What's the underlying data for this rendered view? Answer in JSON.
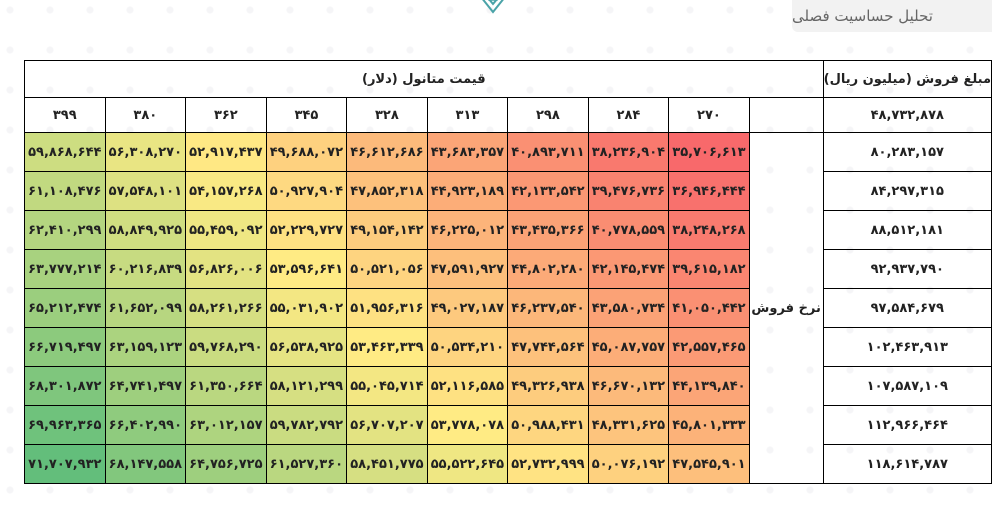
{
  "page_title": "تحلیل حساسیت فصلی",
  "table": {
    "corner_label": "مبلغ فروش (میلیون ریال)",
    "base_value": "۴۸,۷۳۲,۸۷۸",
    "price_title": "قیمت متانول (دلار)",
    "rate_label": "نرخ فروش",
    "prices": [
      "۲۷۰",
      "۲۸۴",
      "۲۹۸",
      "۳۱۳",
      "۳۲۸",
      "۳۴۵",
      "۳۶۲",
      "۳۸۰",
      "۳۹۹"
    ],
    "rows": [
      {
        "rate": "۸۰,۲۸۳,۱۵۷",
        "values": [
          "۳۵,۷۰۶,۶۱۳",
          "۳۸,۲۳۶,۹۰۴",
          "۴۰,۸۹۳,۷۱۱",
          "۴۳,۶۸۳,۳۵۷",
          "۴۶,۶۱۲,۶۸۶",
          "۴۹,۶۸۸,۰۷۲",
          "۵۲,۹۱۷,۴۳۷",
          "۵۶,۳۰۸,۲۷۰",
          "۵۹,۸۶۸,۶۴۴"
        ]
      },
      {
        "rate": "۸۴,۲۹۷,۳۱۵",
        "values": [
          "۳۶,۹۴۶,۴۴۴",
          "۳۹,۴۷۶,۷۳۶",
          "۴۲,۱۳۳,۵۴۲",
          "۴۴,۹۲۳,۱۸۹",
          "۴۷,۸۵۲,۳۱۸",
          "۵۰,۹۲۷,۹۰۴",
          "۵۴,۱۵۷,۲۶۸",
          "۵۷,۵۴۸,۱۰۱",
          "۶۱,۱۰۸,۴۷۶"
        ]
      },
      {
        "rate": "۸۸,۵۱۲,۱۸۱",
        "values": [
          "۳۸,۲۴۸,۲۶۸",
          "۴۰,۷۷۸,۵۵۹",
          "۴۳,۴۳۵,۳۶۶",
          "۴۶,۲۲۵,۰۱۲",
          "۴۹,۱۵۴,۱۴۲",
          "۵۲,۲۲۹,۷۲۷",
          "۵۵,۴۵۹,۰۹۲",
          "۵۸,۸۴۹,۹۲۵",
          "۶۲,۴۱۰,۲۹۹"
        ]
      },
      {
        "rate": "۹۲,۹۳۷,۷۹۰",
        "values": [
          "۳۹,۶۱۵,۱۸۲",
          "۴۲,۱۴۵,۴۷۴",
          "۴۴,۸۰۲,۲۸۰",
          "۴۷,۵۹۱,۹۲۷",
          "۵۰,۵۲۱,۰۵۶",
          "۵۳,۵۹۶,۶۴۱",
          "۵۶,۸۲۶,۰۰۶",
          "۶۰,۲۱۶,۸۳۹",
          "۶۳,۷۷۷,۲۱۴"
        ]
      },
      {
        "rate": "۹۷,۵۸۴,۶۷۹",
        "values": [
          "۴۱,۰۵۰,۴۴۲",
          "۴۳,۵۸۰,۷۳۴",
          "۴۶,۲۳۷,۵۴۰",
          "۴۹,۰۲۷,۱۸۷",
          "۵۱,۹۵۶,۳۱۶",
          "۵۵,۰۳۱,۹۰۲",
          "۵۸,۲۶۱,۲۶۶",
          "۶۱,۶۵۲,۰۹۹",
          "۶۵,۲۱۲,۴۷۴"
        ]
      },
      {
        "rate": "۱۰۲,۴۶۳,۹۱۳",
        "values": [
          "۴۲,۵۵۷,۴۶۵",
          "۴۵,۰۸۷,۷۵۷",
          "۴۷,۷۴۴,۵۶۴",
          "۵۰,۵۳۴,۲۱۰",
          "۵۳,۴۶۳,۳۳۹",
          "۵۶,۵۳۸,۹۲۵",
          "۵۹,۷۶۸,۲۹۰",
          "۶۳,۱۵۹,۱۲۳",
          "۶۶,۷۱۹,۴۹۷"
        ]
      },
      {
        "rate": "۱۰۷,۵۸۷,۱۰۹",
        "values": [
          "۴۴,۱۳۹,۸۴۰",
          "۴۶,۶۷۰,۱۳۲",
          "۴۹,۳۲۶,۹۳۸",
          "۵۲,۱۱۶,۵۸۵",
          "۵۵,۰۴۵,۷۱۴",
          "۵۸,۱۲۱,۲۹۹",
          "۶۱,۳۵۰,۶۶۴",
          "۶۴,۷۴۱,۴۹۷",
          "۶۸,۳۰۱,۸۷۲"
        ]
      },
      {
        "rate": "۱۱۲,۹۶۶,۴۶۴",
        "values": [
          "۴۵,۸۰۱,۳۳۳",
          "۴۸,۳۳۱,۶۲۵",
          "۵۰,۹۸۸,۴۳۱",
          "۵۳,۷۷۸,۰۷۸",
          "۵۶,۷۰۷,۲۰۷",
          "۵۹,۷۸۲,۷۹۲",
          "۶۳,۰۱۲,۱۵۷",
          "۶۶,۴۰۲,۹۹۰",
          "۶۹,۹۶۳,۳۶۵"
        ]
      },
      {
        "rate": "۱۱۸,۶۱۴,۷۸۷",
        "values": [
          "۴۷,۵۴۵,۹۰۱",
          "۵۰,۰۷۶,۱۹۲",
          "۵۲,۷۳۲,۹۹۹",
          "۵۵,۵۲۲,۶۴۵",
          "۵۸,۴۵۱,۷۷۵",
          "۶۱,۵۲۷,۳۶۰",
          "۶۴,۷۵۶,۷۲۵",
          "۶۸,۱۴۷,۵۵۸",
          "۷۱,۷۰۷,۹۳۲"
        ]
      }
    ],
    "heat": [
      [
        0.0,
        0.06,
        0.15,
        0.23,
        0.31,
        0.4,
        0.49,
        0.57,
        0.66
      ],
      [
        0.03,
        0.1,
        0.18,
        0.26,
        0.34,
        0.43,
        0.52,
        0.61,
        0.7
      ],
      [
        0.07,
        0.14,
        0.22,
        0.29,
        0.38,
        0.46,
        0.55,
        0.65,
        0.74
      ],
      [
        0.11,
        0.18,
        0.25,
        0.33,
        0.41,
        0.5,
        0.59,
        0.68,
        0.78
      ],
      [
        0.15,
        0.22,
        0.3,
        0.37,
        0.46,
        0.54,
        0.63,
        0.73,
        0.82
      ],
      [
        0.19,
        0.26,
        0.34,
        0.41,
        0.5,
        0.58,
        0.67,
        0.77,
        0.87
      ],
      [
        0.23,
        0.31,
        0.38,
        0.46,
        0.54,
        0.63,
        0.72,
        0.81,
        0.91
      ],
      [
        0.28,
        0.35,
        0.42,
        0.5,
        0.59,
        0.67,
        0.76,
        0.86,
        0.96
      ],
      [
        0.33,
        0.4,
        0.47,
        0.55,
        0.63,
        0.72,
        0.81,
        0.9,
        1.0
      ]
    ],
    "colors": {
      "low": "#f8696b",
      "mid": "#ffeb84",
      "high": "#63be7b"
    }
  }
}
